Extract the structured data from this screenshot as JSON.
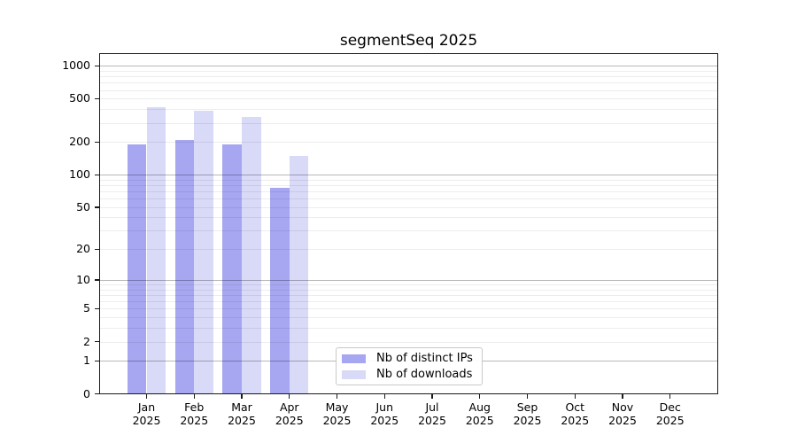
{
  "title": "segmentSeq 2025",
  "colors": {
    "bar_distinct_ips": "#a6a6f1",
    "bar_downloads": "#d9d9f8",
    "grid_major": "#b8b8b8",
    "grid_minor": "#ededed",
    "spine": "#1a1a1a",
    "legend_border": "#c9c9c9",
    "text": "#000000"
  },
  "chart_data": {
    "type": "bar",
    "title": "segmentSeq 2025",
    "x_categories": [
      "Jan",
      "Feb",
      "Mar",
      "Apr",
      "May",
      "Jun",
      "Jul",
      "Aug",
      "Sep",
      "Oct",
      "Nov",
      "Dec"
    ],
    "x_year_label": "2025",
    "y_scale": "log10(value+1)",
    "y_ticks": [
      1000,
      500,
      200,
      100,
      50,
      20,
      10,
      5,
      2,
      1,
      0
    ],
    "y_minor_gridlines": [
      2,
      3,
      4,
      5,
      6,
      7,
      8,
      9,
      20,
      30,
      40,
      50,
      60,
      70,
      80,
      90,
      200,
      300,
      400,
      500,
      600,
      700,
      800,
      900
    ],
    "y_major_gridlines": [
      1,
      10,
      100,
      1000
    ],
    "ylim": [
      0,
      1290
    ],
    "grid": true,
    "legend_position": "bottom-center",
    "series": [
      {
        "name": "Nb of distinct IPs",
        "color": "#a6a6f1",
        "values": [
          190,
          208,
          190,
          75,
          0,
          0,
          0,
          0,
          0,
          0,
          0,
          0
        ]
      },
      {
        "name": "Nb of downloads",
        "color": "#d9d9f8",
        "values": [
          420,
          385,
          340,
          150,
          0,
          0,
          0,
          0,
          0,
          0,
          0,
          0
        ]
      }
    ]
  }
}
